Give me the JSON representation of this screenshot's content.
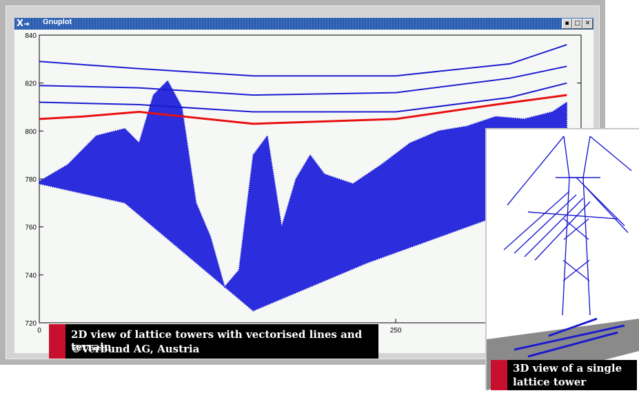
{
  "window": {
    "title": "Gnuplot",
    "logo_text": "X",
    "logo_glyph": "⇥",
    "buttons": [
      {
        "name": "minimize",
        "glyph": "▪"
      },
      {
        "name": "maximize",
        "glyph": "□"
      },
      {
        "name": "close",
        "glyph": "✕"
      }
    ]
  },
  "chart_data": {
    "type": "scatter",
    "title": "",
    "xlabel": "",
    "ylabel": "",
    "xlim": [
      0,
      380
    ],
    "ylim": [
      720,
      840
    ],
    "x_tick_labels": [
      "0",
      "250"
    ],
    "y_tick_labels": [
      "720",
      "740",
      "760",
      "780",
      "800",
      "820",
      "840"
    ],
    "x_ticks_visible": [
      0,
      250
    ],
    "y_ticks": [
      720,
      740,
      760,
      780,
      800,
      820,
      840
    ],
    "grid": false,
    "colors": {
      "points": "#1010d8",
      "vector_line": "#e81010",
      "wires": "#1a1ad0"
    },
    "series": [
      {
        "kind": "wire",
        "x": [
          0,
          70,
          150,
          250,
          330,
          370
        ],
        "y": [
          829,
          826,
          823,
          823,
          828,
          836
        ]
      },
      {
        "kind": "wire",
        "x": [
          0,
          70,
          150,
          250,
          330,
          370
        ],
        "y": [
          819,
          818,
          815,
          816,
          822,
          827
        ]
      },
      {
        "kind": "wire",
        "x": [
          0,
          70,
          150,
          250,
          330,
          370
        ],
        "y": [
          812,
          811,
          808,
          808,
          814,
          820
        ]
      },
      {
        "kind": "vector",
        "x": [
          0,
          30,
          70,
          150,
          250,
          320,
          370
        ],
        "y": [
          805,
          806,
          808,
          803,
          805,
          811,
          815
        ]
      },
      {
        "kind": "terrain",
        "x": [
          0,
          20,
          40,
          60,
          70,
          80,
          90,
          100,
          110,
          120,
          130,
          140,
          150,
          160,
          170,
          180,
          190,
          200,
          220,
          240,
          260,
          280,
          300,
          320,
          340,
          360,
          370
        ],
        "y": [
          779,
          786,
          798,
          801,
          795,
          815,
          821,
          810,
          770,
          756,
          735,
          742,
          790,
          798,
          760,
          780,
          790,
          782,
          778,
          786,
          795,
          800,
          802,
          806,
          805,
          808,
          812
        ]
      }
    ]
  },
  "captions": {
    "main_line1": "2D view of lattice towers with vectorised lines and terrain",
    "main_line2": "©Verbund AG, Austria",
    "inset_line1": "3D view of a single",
    "inset_line2": "lattice tower"
  }
}
